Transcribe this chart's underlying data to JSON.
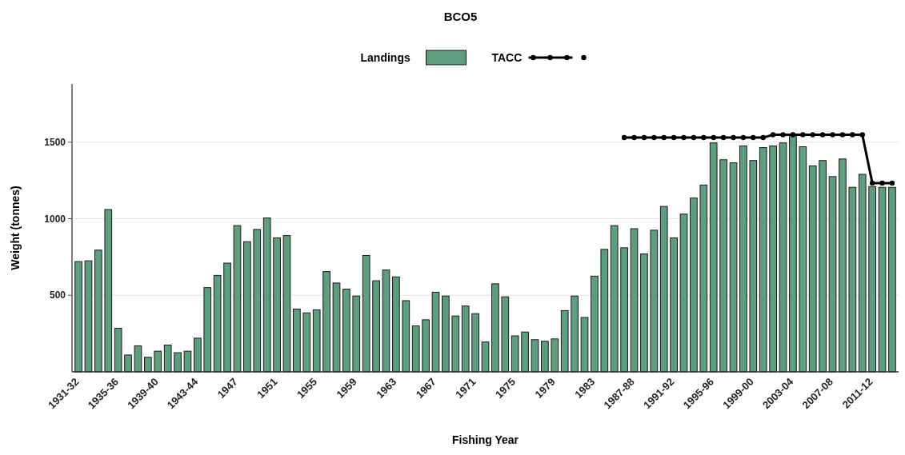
{
  "chart_data": {
    "type": "bar",
    "title": "BCO5",
    "xlabel": "Fishing Year",
    "ylabel": "Weight (tonnes)",
    "categories": [
      "1931-32",
      null,
      null,
      null,
      "1935-36",
      null,
      null,
      null,
      "1939-40",
      null,
      null,
      null,
      "1943-44",
      null,
      null,
      null,
      "1947",
      null,
      null,
      null,
      "1951",
      null,
      null,
      null,
      "1955",
      null,
      null,
      null,
      "1959",
      null,
      null,
      null,
      "1963",
      null,
      null,
      null,
      "1967",
      null,
      null,
      null,
      "1971",
      null,
      null,
      null,
      "1975",
      null,
      null,
      null,
      "1979",
      null,
      null,
      null,
      "1983",
      null,
      null,
      null,
      "1987-88",
      null,
      null,
      null,
      "1991-92",
      null,
      null,
      null,
      "1995-96",
      null,
      null,
      null,
      "1999-00",
      null,
      null,
      null,
      "2003-04",
      null,
      null,
      null,
      "2007-08",
      null,
      null,
      null,
      "2011-12",
      null,
      null
    ],
    "series": [
      {
        "name": "Landings",
        "color": "#5e9e7e",
        "values": [
          720,
          725,
          795,
          1060,
          285,
          110,
          170,
          95,
          135,
          175,
          125,
          135,
          220,
          550,
          630,
          710,
          955,
          850,
          930,
          1005,
          875,
          890,
          410,
          385,
          405,
          655,
          580,
          540,
          495,
          760,
          595,
          665,
          620,
          465,
          300,
          340,
          520,
          495,
          365,
          430,
          380,
          195,
          575,
          490,
          235,
          260,
          210,
          200,
          215,
          400,
          495,
          355,
          625,
          800,
          955,
          810,
          935,
          770,
          925,
          1080,
          875,
          1030,
          1135,
          1220,
          1495,
          1385,
          1365,
          1475,
          1380,
          1465,
          1475,
          1495,
          1550,
          1470,
          1345,
          1380,
          1275,
          1390,
          1205,
          1290,
          1210,
          1205,
          1205
        ]
      },
      {
        "name": "TACC",
        "type": "line",
        "color": "#000000",
        "values": [
          null,
          null,
          null,
          null,
          null,
          null,
          null,
          null,
          null,
          null,
          null,
          null,
          null,
          null,
          null,
          null,
          null,
          null,
          null,
          null,
          null,
          null,
          null,
          null,
          null,
          null,
          null,
          null,
          null,
          null,
          null,
          null,
          null,
          null,
          null,
          null,
          null,
          null,
          null,
          null,
          null,
          null,
          null,
          null,
          null,
          null,
          null,
          null,
          null,
          null,
          null,
          null,
          null,
          null,
          null,
          1530,
          1530,
          1530,
          1530,
          1530,
          1530,
          1530,
          1530,
          1530,
          1530,
          1530,
          1530,
          1530,
          1530,
          1530,
          1548,
          1548,
          1548,
          1548,
          1548,
          1548,
          1548,
          1548,
          1548,
          1548,
          1233,
          1233,
          1233
        ]
      }
    ],
    "ylim": [
      0,
      1880
    ],
    "yticks": [
      500,
      1000,
      1500
    ],
    "grid": "y",
    "legend": "top",
    "marker": "circle",
    "line_style": "solid"
  }
}
